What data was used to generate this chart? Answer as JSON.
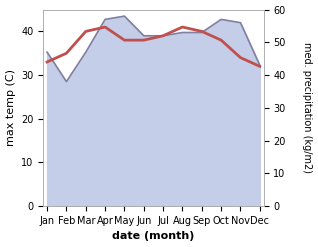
{
  "months": [
    "Jan",
    "Feb",
    "Mar",
    "Apr",
    "May",
    "Jun",
    "Jul",
    "Aug",
    "Sep",
    "Oct",
    "Nov",
    "Dec"
  ],
  "temp": [
    33,
    35,
    40,
    41,
    38,
    38,
    39,
    41,
    40,
    38,
    34,
    32
  ],
  "precip": [
    47,
    38,
    47,
    57,
    58,
    52,
    52,
    53,
    53,
    57,
    56,
    43
  ],
  "temp_color": "#c0504d",
  "precip_line_color": "#8080a0",
  "precip_fill_color": "#c5cee8",
  "ylim_left": [
    0,
    45
  ],
  "ylim_right": [
    0,
    60
  ],
  "yticks_left": [
    0,
    10,
    20,
    30,
    40
  ],
  "yticks_right": [
    0,
    10,
    20,
    30,
    40,
    50,
    60
  ],
  "xlabel": "date (month)",
  "ylabel_left": "max temp (C)",
  "ylabel_right": "med. precipitation (kg/m2)",
  "bg_color": "#ffffff"
}
